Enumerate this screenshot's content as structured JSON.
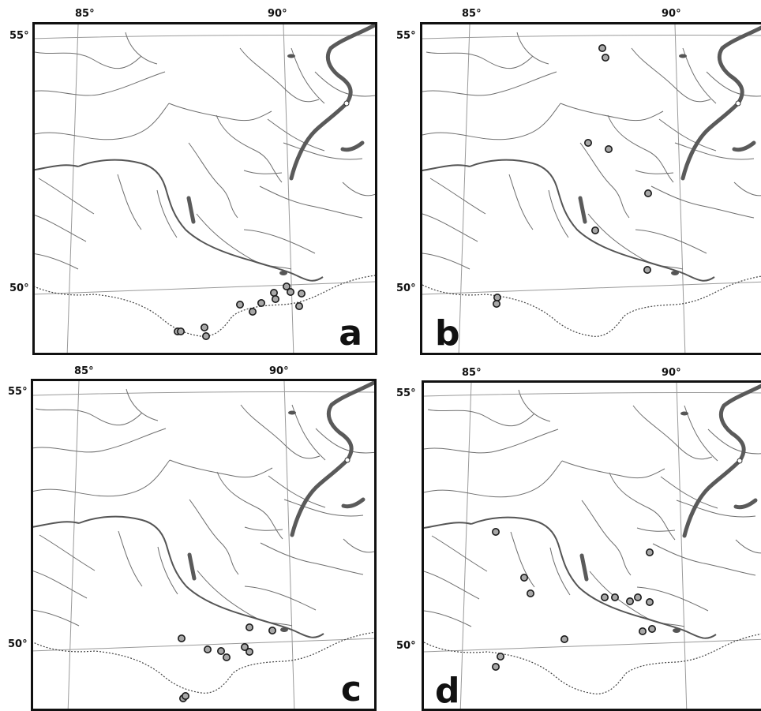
{
  "panels": [
    {
      "label": "a",
      "lon_ticks": [
        "85°",
        "90°"
      ],
      "lat_ticks": [
        "55°",
        "50°"
      ],
      "site_count": 13
    },
    {
      "label": "b",
      "lon_ticks": [
        "85°",
        "90°"
      ],
      "lat_ticks": [
        "55°",
        "50°"
      ],
      "site_count": 9
    },
    {
      "label": "c",
      "lon_ticks": [
        "85°",
        "90°"
      ],
      "lat_ticks": [
        "55°",
        "50°"
      ],
      "site_count": 10
    },
    {
      "label": "d",
      "lon_ticks": [
        "85°",
        "90°"
      ],
      "lat_ticks": [
        "55°",
        "50°"
      ],
      "site_count": 14
    }
  ],
  "colors": {
    "river": "#6e6e6e",
    "major_river": "#5a5a5a",
    "border": "#555555",
    "site_fill": "#a8a8a8",
    "site_stroke": "#1a1a1a"
  }
}
